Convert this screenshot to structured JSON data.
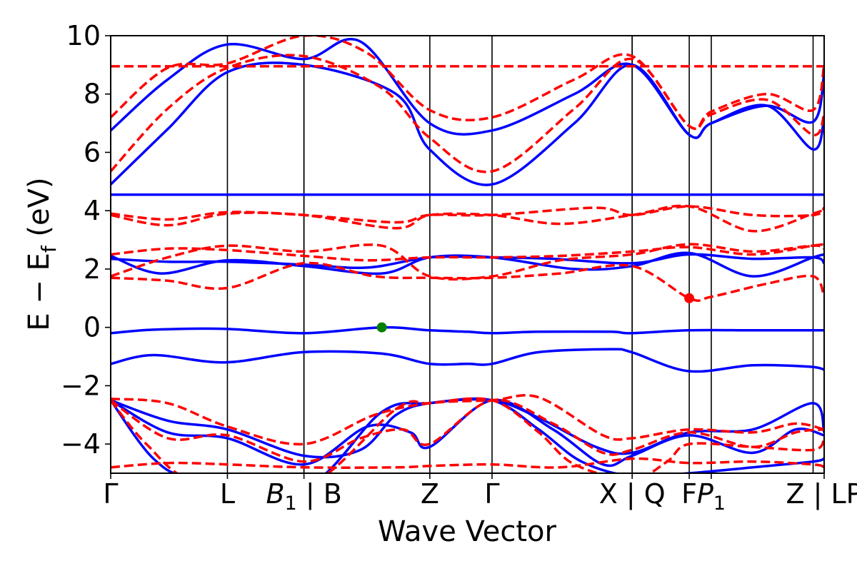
{
  "chart_data": {
    "type": "line",
    "title": "",
    "xlabel": "Wave Vector",
    "ylabel": "E − E",
    "ylabel_sub": "f",
    "ylabel_unit": " (eV)",
    "ylim": [
      -5,
      10
    ],
    "xlim": [
      0,
      1
    ],
    "yticks": [
      {
        "value": 10,
        "label": "10"
      },
      {
        "value": 8,
        "label": "8"
      },
      {
        "value": 6,
        "label": "6"
      },
      {
        "value": 4,
        "label": "4"
      },
      {
        "value": 2,
        "label": "2"
      },
      {
        "value": 0,
        "label": "0"
      },
      {
        "value": -2,
        "label": "−2"
      },
      {
        "value": -4,
        "label": "−4"
      }
    ],
    "high_symmetry_points": [
      {
        "k": 0.0,
        "label": "Γ",
        "sub": ""
      },
      {
        "k": 0.1636,
        "label": "L",
        "sub": ""
      },
      {
        "k": 0.2709,
        "label": "B",
        "sub": "1",
        "italic": true,
        "suffix": " | B"
      },
      {
        "k": 0.4473,
        "label": "Z",
        "sub": ""
      },
      {
        "k": 0.5345,
        "label": "Γ",
        "sub": ""
      },
      {
        "k": 0.7309,
        "label": "X | Q",
        "sub": ""
      },
      {
        "k": 0.8109,
        "label": "F",
        "sub": ""
      },
      {
        "k": 0.8418,
        "label": "P",
        "sub": "1",
        "italic": true
      },
      {
        "k": 1.0,
        "label": "Z | LP",
        "sub": ""
      }
    ],
    "segment_breaks": [
      0.2709,
      0.7309,
      0.9845
    ],
    "colors": {
      "blue": "#0000ff",
      "red": "#ff0000",
      "green": "#008000"
    },
    "series": [
      {
        "name": "blue-flat-band",
        "style": "solid",
        "color": "#0000ff",
        "k": [
          0.0,
          0.5345,
          1.0
        ],
        "E": [
          4.55,
          4.55,
          4.55
        ]
      },
      {
        "name": "blue-vbm-band",
        "style": "solid",
        "color": "#0000ff",
        "k": [
          0.0,
          0.06,
          0.16,
          0.27,
          0.38,
          0.447,
          0.5,
          0.5345,
          0.6,
          0.7,
          0.73,
          0.81,
          0.9,
          0.98,
          1.0
        ],
        "E": [
          -0.2,
          -0.08,
          -0.05,
          -0.2,
          0.0,
          -0.1,
          -0.15,
          -0.2,
          -0.15,
          -0.15,
          -0.2,
          -0.1,
          -0.1,
          -0.1,
          -0.1
        ]
      },
      {
        "name": "blue-valence-2",
        "style": "solid",
        "color": "#0000ff",
        "k": [
          0.0,
          0.06,
          0.16,
          0.27,
          0.38,
          0.447,
          0.5,
          0.5345,
          0.6,
          0.7,
          0.73,
          0.81,
          0.9,
          0.98,
          1.0
        ],
        "E": [
          -1.25,
          -0.95,
          -1.2,
          -0.85,
          -0.9,
          -1.25,
          -1.25,
          -1.25,
          -0.85,
          -0.75,
          -0.85,
          -1.5,
          -1.3,
          -1.35,
          -1.45
        ]
      },
      {
        "name": "blue-conduction-1",
        "style": "solid",
        "color": "#0000ff",
        "k": [
          0.0,
          0.08,
          0.1636,
          0.2709,
          0.4,
          0.447,
          0.5345,
          0.65,
          0.7309,
          0.8109,
          0.8418,
          0.92,
          0.9845,
          1.0
        ],
        "E": [
          4.9,
          6.8,
          8.75,
          9.0,
          8.0,
          6.1,
          4.9,
          7.0,
          9.0,
          6.6,
          7.0,
          7.6,
          6.1,
          7.2
        ]
      },
      {
        "name": "blue-conduction-2",
        "style": "solid",
        "color": "#0000ff",
        "k": [
          0.0,
          0.08,
          0.1636,
          0.2709,
          0.35,
          0.447,
          0.5345,
          0.65,
          0.7309,
          0.8109,
          0.8418,
          0.92,
          0.9845,
          1.0
        ],
        "E": [
          6.75,
          8.5,
          9.7,
          9.2,
          9.8,
          7.0,
          6.75,
          8.0,
          9.0,
          6.6,
          7.0,
          7.6,
          7.05,
          8.7
        ]
      },
      {
        "name": "blue-mid-1",
        "style": "solid",
        "color": "#0000ff",
        "k": [
          0.0,
          0.07,
          0.1636,
          0.2709,
          0.38,
          0.447,
          0.5345,
          0.65,
          0.7309,
          0.8109,
          0.9,
          0.9845,
          1.0
        ],
        "E": [
          2.45,
          1.85,
          2.3,
          2.1,
          1.85,
          2.4,
          2.4,
          2.0,
          2.1,
          2.55,
          1.75,
          2.4,
          2.5
        ]
      },
      {
        "name": "blue-mid-2",
        "style": "solid",
        "color": "#0000ff",
        "k": [
          0.0,
          0.08,
          0.1636,
          0.2709,
          0.36,
          0.447,
          0.5345,
          0.62,
          0.7309,
          0.8109,
          0.9,
          0.9845,
          1.0
        ],
        "E": [
          2.35,
          2.25,
          2.25,
          2.15,
          2.05,
          2.4,
          2.4,
          2.35,
          2.2,
          2.5,
          2.35,
          2.4,
          2.2
        ]
      },
      {
        "name": "blue-deep-1",
        "style": "solid",
        "color": "#0000ff",
        "k": [
          0.0,
          0.08,
          0.1636,
          0.2709,
          0.35,
          0.4,
          0.447,
          0.5345,
          0.6,
          0.68,
          0.7309,
          0.8109,
          0.9,
          0.9845,
          1.0
        ],
        "E": [
          -2.5,
          -3.2,
          -3.5,
          -4.4,
          -4.2,
          -3.0,
          -2.6,
          -2.5,
          -3.1,
          -4.1,
          -4.3,
          -3.6,
          -3.5,
          -2.6,
          -3.6
        ]
      },
      {
        "name": "blue-deep-2",
        "style": "solid",
        "color": "#0000ff",
        "k": [
          0.0,
          0.08,
          0.1636,
          0.2709,
          0.36,
          0.42,
          0.447,
          0.5345,
          0.62,
          0.69,
          0.7309,
          0.8109,
          0.9,
          0.96,
          1.0
        ],
        "E": [
          -2.5,
          -3.6,
          -3.8,
          -4.7,
          -3.4,
          -3.6,
          -4.1,
          -2.5,
          -3.5,
          -4.7,
          -4.4,
          -3.7,
          -4.3,
          -3.5,
          -3.7
        ]
      },
      {
        "name": "blue-deep-3",
        "style": "solid",
        "color": "#0000ff",
        "k": [
          0.0,
          0.06,
          0.12,
          0.2709,
          0.38,
          0.447,
          0.5345,
          0.6,
          0.66,
          0.7309,
          0.8109,
          0.9,
          0.9845,
          1.0
        ],
        "E": [
          -2.5,
          -4.5,
          -5.2,
          -5.5,
          -2.9,
          -2.6,
          -2.5,
          -3.5,
          -4.6,
          -5.1,
          -5.0,
          -4.8,
          -4.6,
          -4.5
        ]
      },
      {
        "name": "red-flat",
        "style": "dashed",
        "color": "#ff0000",
        "k": [
          0.0,
          0.5345,
          1.0
        ],
        "E": [
          8.95,
          8.95,
          8.95
        ]
      },
      {
        "name": "red-conduction-1",
        "style": "dashed",
        "color": "#ff0000",
        "k": [
          0.0,
          0.08,
          0.1636,
          0.2709,
          0.38,
          0.447,
          0.5345,
          0.65,
          0.7309,
          0.8109,
          0.8418,
          0.92,
          0.9845,
          1.0
        ],
        "E": [
          5.35,
          7.5,
          8.9,
          9.3,
          8.2,
          6.5,
          5.35,
          7.5,
          9.2,
          6.9,
          7.3,
          7.8,
          6.6,
          7.3
        ]
      },
      {
        "name": "red-conduction-2",
        "style": "dashed",
        "color": "#ff0000",
        "k": [
          0.0,
          0.08,
          0.1636,
          0.2709,
          0.36,
          0.447,
          0.5345,
          0.65,
          0.7309,
          0.8109,
          0.8418,
          0.92,
          0.9845,
          1.0
        ],
        "E": [
          7.2,
          8.9,
          9.05,
          10.0,
          9.4,
          7.45,
          7.2,
          8.5,
          9.3,
          6.9,
          7.4,
          8.0,
          7.45,
          9.0
        ]
      },
      {
        "name": "red-upper-valence-1",
        "style": "dashed",
        "color": "#ff0000",
        "k": [
          0.0,
          0.08,
          0.1636,
          0.2709,
          0.4,
          0.447,
          0.5345,
          0.63,
          0.7309,
          0.8109,
          0.9,
          0.9845,
          1.0
        ],
        "E": [
          3.85,
          3.5,
          3.9,
          3.85,
          3.4,
          3.85,
          3.85,
          3.55,
          3.85,
          4.15,
          3.3,
          3.9,
          4.05
        ]
      },
      {
        "name": "red-upper-valence-2",
        "style": "dashed",
        "color": "#ff0000",
        "k": [
          0.0,
          0.08,
          0.1636,
          0.2709,
          0.4,
          0.447,
          0.5345,
          0.68,
          0.7309,
          0.8109,
          0.9,
          0.9845,
          1.0
        ],
        "E": [
          3.9,
          3.7,
          3.95,
          3.85,
          3.6,
          3.85,
          3.85,
          4.1,
          3.85,
          4.15,
          3.85,
          3.85,
          4.1
        ]
      },
      {
        "name": "red-mid-1",
        "style": "dashed",
        "color": "#ff0000",
        "k": [
          0.0,
          0.08,
          0.1636,
          0.2709,
          0.37,
          0.447,
          0.5345,
          0.63,
          0.7309,
          0.8109,
          0.8418,
          0.92,
          0.9845,
          1.0
        ],
        "E": [
          1.7,
          1.6,
          1.35,
          2.2,
          1.75,
          1.7,
          1.7,
          1.85,
          2.1,
          1.0,
          1.05,
          1.5,
          1.75,
          1.05
        ]
      },
      {
        "name": "red-mid-2",
        "style": "dashed",
        "color": "#ff0000",
        "k": [
          0.0,
          0.08,
          0.1636,
          0.2709,
          0.38,
          0.447,
          0.5345,
          0.63,
          0.7309,
          0.8109,
          0.9,
          0.9845,
          1.0
        ],
        "E": [
          1.75,
          2.4,
          2.8,
          2.6,
          2.8,
          1.75,
          1.75,
          2.3,
          2.5,
          2.85,
          2.6,
          2.8,
          2.7
        ]
      },
      {
        "name": "red-mid-3",
        "style": "dashed",
        "color": "#ff0000",
        "k": [
          0.0,
          0.08,
          0.1636,
          0.2709,
          0.36,
          0.447,
          0.5345,
          0.63,
          0.7309,
          0.8109,
          0.9,
          0.9845,
          1.0
        ],
        "E": [
          2.5,
          2.7,
          2.65,
          2.45,
          2.3,
          2.4,
          2.4,
          2.45,
          2.6,
          2.75,
          2.5,
          2.8,
          2.85
        ]
      },
      {
        "name": "red-deep-1",
        "style": "dashed",
        "color": "#ff0000",
        "k": [
          0.0,
          0.08,
          0.1636,
          0.2709,
          0.37,
          0.447,
          0.5345,
          0.6,
          0.69,
          0.7309,
          0.8109,
          0.9,
          0.96,
          1.0
        ],
        "E": [
          -2.45,
          -2.6,
          -3.4,
          -4.0,
          -3.0,
          -2.6,
          -2.5,
          -2.4,
          -3.7,
          -3.8,
          -3.5,
          -3.6,
          -3.3,
          -3.5
        ]
      },
      {
        "name": "red-deep-2",
        "style": "dashed",
        "color": "#ff0000",
        "k": [
          0.0,
          0.08,
          0.1636,
          0.2709,
          0.35,
          0.41,
          0.447,
          0.5345,
          0.62,
          0.69,
          0.7309,
          0.8109,
          0.9,
          0.96,
          1.0
        ],
        "E": [
          -2.5,
          -3.8,
          -3.7,
          -4.6,
          -3.8,
          -3.5,
          -4.0,
          -2.5,
          -3.3,
          -4.3,
          -4.2,
          -3.6,
          -4.1,
          -3.6,
          -3.5
        ]
      },
      {
        "name": "red-deep-3",
        "style": "dashed",
        "color": "#ff0000",
        "k": [
          0.0,
          0.08,
          0.1636,
          0.2709,
          0.4,
          0.447,
          0.5345,
          0.63,
          0.7309,
          0.8109,
          0.9,
          0.9845,
          1.0
        ],
        "E": [
          -4.8,
          -4.65,
          -4.7,
          -4.8,
          -4.8,
          -4.75,
          -4.7,
          -4.8,
          -4.5,
          -4.65,
          -4.6,
          -4.7,
          -4.8
        ]
      },
      {
        "name": "red-deep-4",
        "style": "dashed",
        "color": "#ff0000",
        "k": [
          0.0,
          0.05,
          0.12,
          0.2709,
          0.4,
          0.447,
          0.5345,
          0.6,
          0.65,
          0.7309,
          0.78,
          0.8109,
          0.9,
          0.9845,
          1.0
        ],
        "E": [
          -2.5,
          -4.0,
          -5.3,
          -5.5,
          -2.8,
          -2.6,
          -2.5,
          -3.6,
          -4.7,
          -5.2,
          -4.6,
          -4.0,
          -4.1,
          -4.2,
          -3.8
        ]
      }
    ],
    "markers": [
      {
        "name": "vbm-marker",
        "k": 0.38,
        "E": 0.0,
        "color": "#008000"
      },
      {
        "name": "cbm-marker",
        "k": 0.8109,
        "E": 1.0,
        "color": "#ff0000"
      }
    ]
  }
}
